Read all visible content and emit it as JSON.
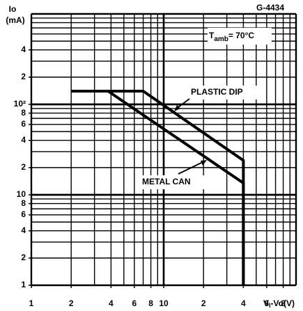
{
  "chart_data": {
    "type": "line",
    "figure_id": "G-4434",
    "ylabel": [
      "Io",
      "(mA)"
    ],
    "xlabel": {
      "main": "V",
      "subscript": "I",
      "rest": "-Vo(V)"
    },
    "condition": {
      "symbol": "T",
      "subscript": "amb",
      "rest": "= 70°C"
    },
    "log_x": true,
    "log_y": true,
    "grid": "log-minor",
    "xlim": [
      1,
      100
    ],
    "ylim": [
      1,
      1000
    ],
    "xticks": [
      1,
      {
        "value": 2,
        "label": "2"
      },
      {
        "value": 4,
        "label": "4"
      },
      {
        "value": 6,
        "label": "6"
      },
      {
        "value": 8,
        "label": "8"
      },
      10,
      {
        "value": 20,
        "label": "2"
      },
      {
        "value": 40,
        "label": "4"
      },
      {
        "value": 60,
        "label": "6"
      },
      {
        "value": 80,
        "label": "8"
      }
    ],
    "yticks": [
      1,
      {
        "value": 2,
        "label": "2"
      },
      {
        "value": 4,
        "label": "4"
      },
      {
        "value": 6,
        "label": "6"
      },
      {
        "value": 8,
        "label": "8"
      },
      10,
      {
        "value": 20,
        "label": "2"
      },
      {
        "value": 40,
        "label": "4"
      },
      {
        "value": 60,
        "label": "6"
      },
      {
        "value": 80,
        "label": "8"
      },
      {
        "value": 100,
        "label": "10²"
      },
      {
        "value": 200,
        "label": "2"
      },
      {
        "value": 400,
        "label": "4"
      }
    ],
    "series": [
      {
        "name": "PLASTIC DIP",
        "color": "#000000",
        "x": [
          2,
          7,
          40,
          40
        ],
        "values": [
          140,
          140,
          24,
          1
        ]
      },
      {
        "name": "METAL CAN",
        "color": "#000000",
        "x": [
          2,
          3.8,
          40,
          40
        ],
        "values": [
          140,
          140,
          13.5,
          1
        ]
      }
    ]
  }
}
